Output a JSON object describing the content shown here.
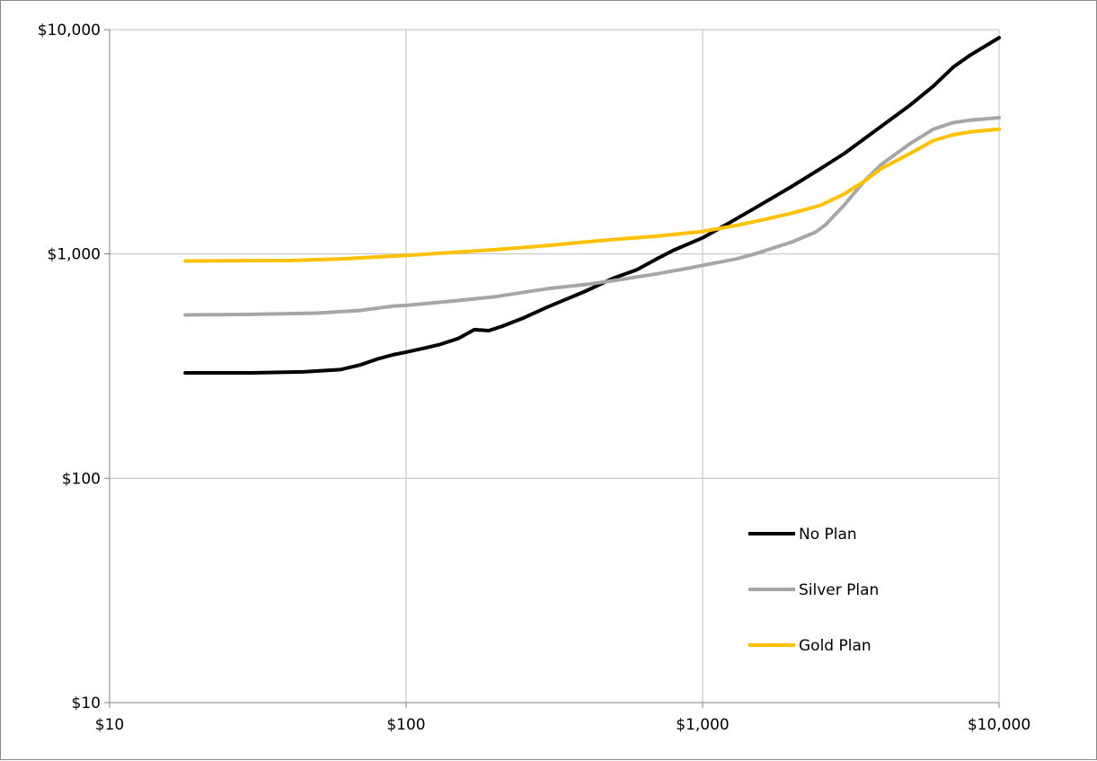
{
  "chart_data": {
    "type": "line",
    "title": "",
    "xlabel": "",
    "ylabel": "",
    "x_scale": "log",
    "y_scale": "log",
    "xlim": [
      10,
      10000
    ],
    "ylim": [
      10,
      10000
    ],
    "grid": true,
    "legend_position": "lower-right",
    "x_ticks": [
      {
        "value": 10,
        "label": "$10"
      },
      {
        "value": 100,
        "label": "$100"
      },
      {
        "value": 1000,
        "label": "$1,000"
      },
      {
        "value": 10000,
        "label": "$10,000"
      }
    ],
    "y_ticks": [
      {
        "value": 10,
        "label": "$10"
      },
      {
        "value": 100,
        "label": "$100"
      },
      {
        "value": 1000,
        "label": "$1,000"
      },
      {
        "value": 10000,
        "label": "$10,000"
      }
    ],
    "series": [
      {
        "name": "No Plan",
        "color": "#000000",
        "points": [
          [
            18,
            295
          ],
          [
            30,
            295
          ],
          [
            45,
            298
          ],
          [
            60,
            305
          ],
          [
            70,
            320
          ],
          [
            80,
            340
          ],
          [
            90,
            355
          ],
          [
            100,
            365
          ],
          [
            115,
            380
          ],
          [
            130,
            395
          ],
          [
            150,
            420
          ],
          [
            170,
            460
          ],
          [
            190,
            455
          ],
          [
            210,
            475
          ],
          [
            250,
            520
          ],
          [
            300,
            580
          ],
          [
            400,
            680
          ],
          [
            500,
            780
          ],
          [
            600,
            850
          ],
          [
            700,
            950
          ],
          [
            800,
            1040
          ],
          [
            1000,
            1180
          ],
          [
            1200,
            1350
          ],
          [
            1500,
            1600
          ],
          [
            2000,
            2000
          ],
          [
            2500,
            2400
          ],
          [
            3000,
            2800
          ],
          [
            4000,
            3700
          ],
          [
            5000,
            4600
          ],
          [
            6000,
            5600
          ],
          [
            7000,
            6800
          ],
          [
            8000,
            7700
          ],
          [
            10000,
            9200
          ]
        ]
      },
      {
        "name": "Silver Plan",
        "color": "#a6a6a6",
        "points": [
          [
            18,
            535
          ],
          [
            30,
            538
          ],
          [
            50,
            545
          ],
          [
            70,
            560
          ],
          [
            90,
            585
          ],
          [
            100,
            590
          ],
          [
            150,
            620
          ],
          [
            200,
            645
          ],
          [
            300,
            700
          ],
          [
            400,
            730
          ],
          [
            500,
            760
          ],
          [
            700,
            815
          ],
          [
            900,
            865
          ],
          [
            1000,
            890
          ],
          [
            1300,
            950
          ],
          [
            1500,
            1000
          ],
          [
            2000,
            1130
          ],
          [
            2400,
            1250
          ],
          [
            2600,
            1350
          ],
          [
            3000,
            1650
          ],
          [
            3500,
            2100
          ],
          [
            4000,
            2500
          ],
          [
            5000,
            3100
          ],
          [
            6000,
            3600
          ],
          [
            7000,
            3850
          ],
          [
            8000,
            3950
          ],
          [
            10000,
            4050
          ]
        ]
      },
      {
        "name": "Gold Plan",
        "color": "#ffc000",
        "points": [
          [
            18,
            930
          ],
          [
            40,
            935
          ],
          [
            60,
            950
          ],
          [
            80,
            970
          ],
          [
            100,
            985
          ],
          [
            150,
            1020
          ],
          [
            200,
            1045
          ],
          [
            300,
            1090
          ],
          [
            400,
            1130
          ],
          [
            500,
            1160
          ],
          [
            700,
            1200
          ],
          [
            1000,
            1260
          ],
          [
            1300,
            1340
          ],
          [
            1600,
            1420
          ],
          [
            2000,
            1520
          ],
          [
            2500,
            1650
          ],
          [
            3000,
            1850
          ],
          [
            3500,
            2100
          ],
          [
            4000,
            2400
          ],
          [
            5000,
            2800
          ],
          [
            6000,
            3200
          ],
          [
            7000,
            3400
          ],
          [
            8000,
            3500
          ],
          [
            10000,
            3600
          ]
        ]
      }
    ]
  }
}
